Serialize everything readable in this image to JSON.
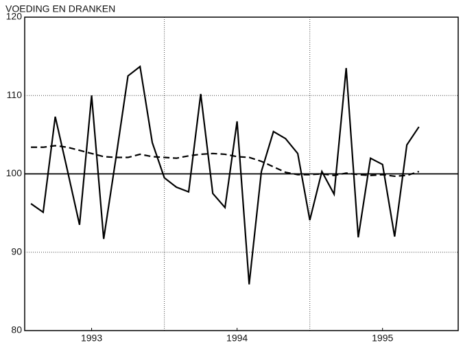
{
  "chart_data": {
    "type": "line",
    "title": "VOEDING EN DRANKEN",
    "x": [
      1993.083,
      1993.167,
      1993.25,
      1993.333,
      1993.417,
      1993.5,
      1993.583,
      1993.667,
      1993.75,
      1993.833,
      1993.917,
      1994.0,
      1994.083,
      1994.167,
      1994.25,
      1994.333,
      1994.417,
      1994.5,
      1994.583,
      1994.667,
      1994.75,
      1994.833,
      1994.917,
      1995.0,
      1995.083,
      1995.167,
      1995.25,
      1995.333,
      1995.417,
      1995.5,
      1995.583,
      1995.667,
      1995.75
    ],
    "series": [
      {
        "color": "#000000",
        "dash": false,
        "values": [
          96.2,
          95.1,
          107.3,
          100.5,
          93.5,
          110,
          91.7,
          102,
          112.5,
          113.7,
          104,
          99.5,
          98.3,
          97.7,
          110.2,
          97.5,
          95.7,
          106.7,
          85.9,
          100.3,
          105.4,
          104.5,
          102.6,
          94.1,
          100.3,
          97.4,
          113.5,
          91.9,
          102,
          101.2,
          92,
          103.7,
          106
        ]
      },
      {
        "color": "#000000",
        "dash": true,
        "values": [
          103.4,
          103.4,
          103.6,
          103.4,
          103,
          102.6,
          102.2,
          102.1,
          102.1,
          102.5,
          102.2,
          102.1,
          102,
          102.3,
          102.5,
          102.6,
          102.5,
          102.2,
          102.1,
          101.6,
          100.9,
          100.2,
          99.9,
          99.9,
          100,
          99.8,
          100.1,
          99.9,
          99.8,
          99.9,
          99.7,
          99.8,
          100.3
        ]
      }
    ],
    "xlim": [
      1993.04,
      1996.02
    ],
    "xticks": [
      {
        "value": 1993.5,
        "label": "1993"
      },
      {
        "value": 1994.5,
        "label": "1994"
      },
      {
        "value": 1995.5,
        "label": "1995"
      }
    ],
    "xgrid": [
      1994,
      1995
    ],
    "ylim": [
      80,
      120
    ],
    "yticks": [
      80,
      90,
      100,
      110,
      120
    ],
    "reference_line": 100,
    "grid": true
  }
}
